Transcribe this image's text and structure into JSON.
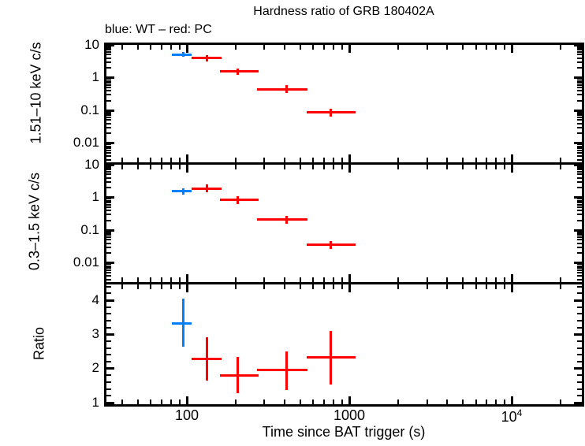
{
  "title": "Hardness ratio of GRB 180402A",
  "legend": "blue: WT – red: PC",
  "colors": {
    "wt_blue": "#0080ff",
    "pc_red": "#ff0000",
    "axis": "#000000",
    "background": "#ffffff"
  },
  "x_axis": {
    "label": "Time since BAT trigger (s)",
    "scale": "log",
    "range_s": [
      31,
      27300
    ],
    "major_tick_values": [
      100,
      1000,
      10000
    ],
    "tick_labels": {
      "t100": "100",
      "t1000": "1000",
      "t1e4_base": "10",
      "t1e4_sup": "4"
    }
  },
  "panels": [
    {
      "ylabel": "1.51–10 keV c/s",
      "scale": "log",
      "range": [
        0.0024,
        11.2
      ],
      "major_tick_values": [
        10,
        1,
        0.1,
        0.01
      ],
      "tick_labels": [
        "10",
        "1",
        "0.1",
        "0.01"
      ]
    },
    {
      "ylabel": "0.3–1.5 keV c/s",
      "scale": "log",
      "range": [
        0.0024,
        11.2
      ],
      "major_tick_values": [
        10,
        1,
        0.1,
        0.01
      ],
      "tick_labels": [
        "10",
        "1",
        "0.1",
        "0.01"
      ]
    },
    {
      "ylabel": "Ratio",
      "scale": "linear",
      "range": [
        0.93,
        4.51
      ],
      "major_tick_values": [
        4,
        3,
        2,
        1
      ],
      "tick_labels": [
        "4",
        "3",
        "2",
        "1"
      ]
    }
  ],
  "chart_data": [
    {
      "type": "scatter",
      "panel": "hard-band-rate",
      "title": "Hardness ratio of GRB 180402A",
      "subtitle": "blue: WT – red: PC",
      "xlabel": "Time since BAT trigger (s)",
      "ylabel": "1.51–10 keV c/s",
      "xscale": "log",
      "yscale": "log",
      "xlim": [
        31,
        27300
      ],
      "ylim": [
        0.0024,
        11.2
      ],
      "series": [
        {
          "name": "WT",
          "color": "#0080ff",
          "points": [
            {
              "t": 95,
              "t_lo": 81,
              "t_hi": 107,
              "y": 5.1,
              "y_lo": 4.4,
              "y_hi": 6.1
            }
          ]
        },
        {
          "name": "PC",
          "color": "#ff0000",
          "points": [
            {
              "t": 133,
              "t_lo": 107,
              "t_hi": 163,
              "y": 3.9,
              "y_lo": 3.2,
              "y_hi": 4.9
            },
            {
              "t": 206,
              "t_lo": 160,
              "t_hi": 277,
              "y": 1.52,
              "y_lo": 1.21,
              "y_hi": 1.92
            },
            {
              "t": 409,
              "t_lo": 270,
              "t_hi": 555,
              "y": 0.44,
              "y_lo": 0.33,
              "y_hi": 0.58
            },
            {
              "t": 769,
              "t_lo": 546,
              "t_hi": 1096,
              "y": 0.088,
              "y_lo": 0.065,
              "y_hi": 0.114
            }
          ]
        }
      ]
    },
    {
      "type": "scatter",
      "panel": "soft-band-rate",
      "ylabel": "0.3–1.5 keV c/s",
      "xscale": "log",
      "yscale": "log",
      "xlim": [
        31,
        27300
      ],
      "ylim": [
        0.0024,
        11.2
      ],
      "series": [
        {
          "name": "WT",
          "color": "#0080ff",
          "points": [
            {
              "t": 95,
              "t_lo": 81,
              "t_hi": 107,
              "y": 1.53,
              "y_lo": 1.2,
              "y_hi": 1.92
            }
          ]
        },
        {
          "name": "PC",
          "color": "#ff0000",
          "points": [
            {
              "t": 133,
              "t_lo": 107,
              "t_hi": 163,
              "y": 1.84,
              "y_lo": 1.45,
              "y_hi": 2.53
            },
            {
              "t": 206,
              "t_lo": 160,
              "t_hi": 277,
              "y": 0.83,
              "y_lo": 0.63,
              "y_hi": 1.1
            },
            {
              "t": 409,
              "t_lo": 270,
              "t_hi": 555,
              "y": 0.21,
              "y_lo": 0.152,
              "y_hi": 0.274
            },
            {
              "t": 769,
              "t_lo": 546,
              "t_hi": 1096,
              "y": 0.036,
              "y_lo": 0.026,
              "y_hi": 0.047
            }
          ]
        }
      ]
    },
    {
      "type": "scatter",
      "panel": "hardness-ratio",
      "ylabel": "Ratio",
      "xscale": "log",
      "yscale": "linear",
      "xlim": [
        31,
        27300
      ],
      "ylim": [
        0.93,
        4.51
      ],
      "series": [
        {
          "name": "WT",
          "color": "#0080ff",
          "points": [
            {
              "t": 95,
              "t_lo": 81,
              "t_hi": 107,
              "y": 3.32,
              "y_lo": 2.63,
              "y_hi": 4.05
            }
          ]
        },
        {
          "name": "PC",
          "color": "#ff0000",
          "points": [
            {
              "t": 133,
              "t_lo": 107,
              "t_hi": 163,
              "y": 2.28,
              "y_lo": 1.65,
              "y_hi": 2.92
            },
            {
              "t": 206,
              "t_lo": 160,
              "t_hi": 277,
              "y": 1.79,
              "y_lo": 1.27,
              "y_hi": 2.33
            },
            {
              "t": 409,
              "t_lo": 270,
              "t_hi": 555,
              "y": 1.96,
              "y_lo": 1.38,
              "y_hi": 2.51
            },
            {
              "t": 769,
              "t_lo": 546,
              "t_hi": 1096,
              "y": 2.32,
              "y_lo": 1.54,
              "y_hi": 3.11
            }
          ]
        }
      ]
    }
  ]
}
